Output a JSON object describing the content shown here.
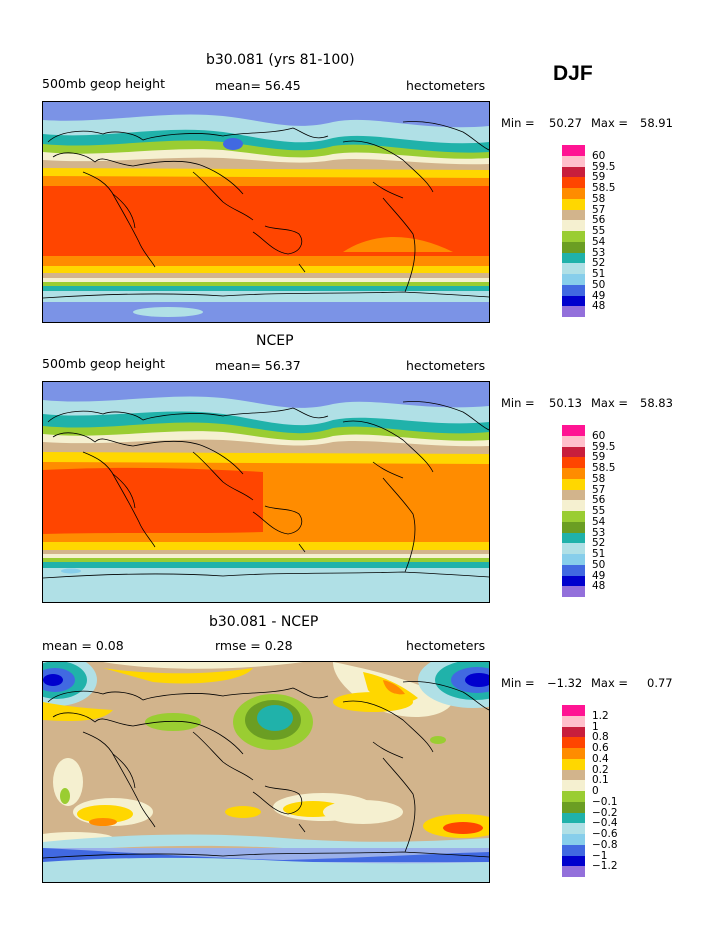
{
  "season": "DJF",
  "palette_main": [
    "#ff1493",
    "#ffc0cb",
    "#cd2626",
    "#ff4500",
    "#ff8c00",
    "#ffd700",
    "#f5deb3",
    "#d2b48c",
    "#f5f5dc",
    "#9acd32",
    "#6b8e23",
    "#20b2aa",
    "#b0e0e6",
    "#87ceeb",
    "#4169e1",
    "#0000cd",
    "#9370db"
  ],
  "panels": [
    {
      "title": "b30.081 (yrs 81-100)",
      "left_label": "500mb geop height",
      "center_label": "mean=  56.45",
      "right_label": "hectometers",
      "min_label": "Min =",
      "min_value": "50.27",
      "max_label": "Max =",
      "max_value": "58.91",
      "legend": [
        "60",
        "59.5",
        "59",
        "58.5",
        "58",
        "57",
        "56",
        "55",
        "54",
        "53",
        "52",
        "51",
        "50",
        "49",
        "48"
      ],
      "legend_colors": [
        "#ff1493",
        "#ffc0cb",
        "#c81e3c",
        "#ff4500",
        "#ff8c00",
        "#ffd700",
        "#d2b48c",
        "#f5f0d0",
        "#9acd32",
        "#6b9e23",
        "#20b2aa",
        "#b0e0e6",
        "#87ceeb",
        "#4169e1",
        "#0000cd",
        "#9370db"
      ]
    },
    {
      "title": "NCEP",
      "left_label": "500mb geop height",
      "center_label": "mean=  56.37",
      "right_label": "hectometers",
      "min_label": "Min =",
      "min_value": "50.13",
      "max_label": "Max =",
      "max_value": "58.83",
      "legend": [
        "60",
        "59.5",
        "59",
        "58.5",
        "58",
        "57",
        "56",
        "55",
        "54",
        "53",
        "52",
        "51",
        "50",
        "49",
        "48"
      ],
      "legend_colors": [
        "#ff1493",
        "#ffc0cb",
        "#c81e3c",
        "#ff4500",
        "#ff8c00",
        "#ffd700",
        "#d2b48c",
        "#f5f0d0",
        "#9acd32",
        "#6b9e23",
        "#20b2aa",
        "#b0e0e6",
        "#87ceeb",
        "#4169e1",
        "#0000cd",
        "#9370db"
      ]
    },
    {
      "title": "b30.081 - NCEP",
      "left_label": "mean =    0.08",
      "center_label": "rmse =    0.28",
      "right_label": "hectometers",
      "min_label": "Min =",
      "min_value": "−1.32",
      "max_label": "Max =",
      "max_value": "0.77",
      "legend": [
        "1.2",
        "1",
        "0.8",
        "0.6",
        "0.4",
        "0.2",
        "0.1",
        "0",
        "−0.1",
        "−0.2",
        "−0.4",
        "−0.6",
        "−0.8",
        "−1",
        "−1.2"
      ],
      "legend_colors": [
        "#ff1493",
        "#ffc0cb",
        "#c81e3c",
        "#ff4500",
        "#ff8c00",
        "#ffd700",
        "#d2b48c",
        "#f5f0d0",
        "#9acd32",
        "#6b9e23",
        "#20b2aa",
        "#b0e0e6",
        "#87ceeb",
        "#4169e1",
        "#0000cd",
        "#9370db"
      ]
    }
  ]
}
